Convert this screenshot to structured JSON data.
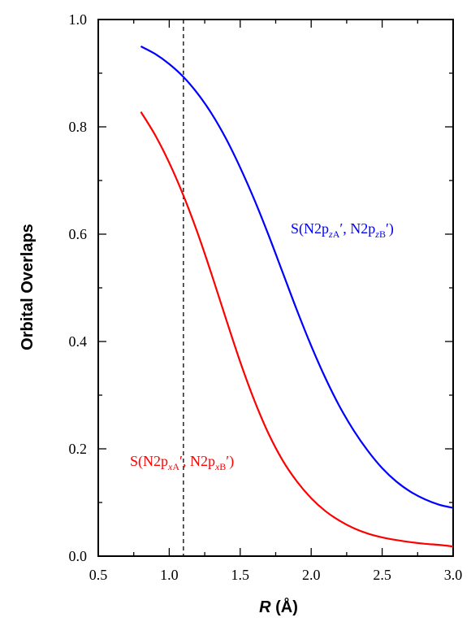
{
  "chart_data": {
    "type": "line",
    "xlabel_italic": "R",
    "xlabel_unit": " (Å)",
    "ylabel": "Orbital Overlaps",
    "xlim": [
      0.5,
      3.0
    ],
    "ylim": [
      0.0,
      1.0
    ],
    "x_ticks": [
      "0.5",
      "1.0",
      "1.5",
      "2.0",
      "2.5",
      "3.0"
    ],
    "y_ticks": [
      "0.0",
      "0.2",
      "0.4",
      "0.6",
      "0.8",
      "1.0"
    ],
    "grid": false,
    "reference_line_x": 1.1,
    "series": [
      {
        "name": "S(N2pzA′, N2pzB′)",
        "color": "#0000ff",
        "label_parts": {
          "prefix": "S(N2p",
          "sub1_italic": "z",
          "sub1_plain": "A",
          "mid": "′, N2p",
          "sub2_italic": "z",
          "sub2_plain": "B",
          "suffix": "′)"
        },
        "x": [
          0.8,
          0.9,
          1.0,
          1.1,
          1.2,
          1.3,
          1.4,
          1.5,
          1.6,
          1.7,
          1.8,
          1.9,
          2.0,
          2.1,
          2.2,
          2.3,
          2.4,
          2.5,
          2.6,
          2.7,
          2.8,
          2.9,
          3.0
        ],
        "values": [
          0.95,
          0.936,
          0.917,
          0.893,
          0.862,
          0.824,
          0.778,
          0.724,
          0.664,
          0.598,
          0.528,
          0.458,
          0.392,
          0.332,
          0.279,
          0.234,
          0.196,
          0.164,
          0.139,
          0.12,
          0.106,
          0.096,
          0.09
        ]
      },
      {
        "name": "S(N2pxA′, N2pxB′)",
        "color": "#ff0000",
        "label_parts": {
          "prefix": "S(N2p",
          "sub1_italic": "x",
          "sub1_plain": "A",
          "mid": "′, N2p",
          "sub2_italic": "x",
          "sub2_plain": "B",
          "suffix": "′)"
        },
        "x": [
          0.8,
          0.9,
          1.0,
          1.1,
          1.2,
          1.3,
          1.4,
          1.5,
          1.6,
          1.7,
          1.8,
          1.9,
          2.0,
          2.1,
          2.2,
          2.3,
          2.4,
          2.5,
          2.6,
          2.7,
          2.8,
          2.9,
          3.0
        ],
        "values": [
          0.828,
          0.785,
          0.733,
          0.672,
          0.602,
          0.524,
          0.442,
          0.362,
          0.29,
          0.228,
          0.178,
          0.139,
          0.108,
          0.084,
          0.066,
          0.052,
          0.042,
          0.035,
          0.03,
          0.026,
          0.023,
          0.021,
          0.018
        ]
      }
    ]
  }
}
